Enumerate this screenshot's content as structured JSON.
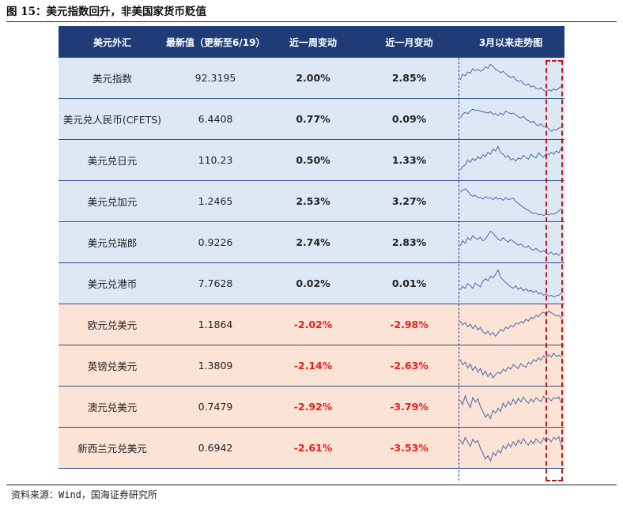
{
  "figure": {
    "title": "图 15：美元指数回升，非美国家货币贬值",
    "source": "资料来源：Wind，国海证券研究所"
  },
  "table": {
    "headers": [
      "美元外汇",
      "最新值（更新至6/19）",
      "近一周变动",
      "近一月变动",
      "3月以来走势图"
    ],
    "rows": [
      {
        "name": "美元指数",
        "latest": "92.3195",
        "week": "2.00%",
        "month": "2.85%",
        "group": "usd",
        "trend": [
          0.45,
          0.62,
          0.58,
          0.7,
          0.66,
          0.8,
          0.74,
          0.78,
          0.72,
          0.76,
          0.86,
          0.82,
          0.94,
          0.88,
          0.78,
          0.74,
          0.68,
          0.72,
          0.64,
          0.58,
          0.52,
          0.56,
          0.46,
          0.4,
          0.42,
          0.34,
          0.28,
          0.32,
          0.22,
          0.26,
          0.18,
          0.16,
          0.2,
          0.12,
          0.08,
          0.14,
          0.1,
          0.16,
          0.12,
          0.18,
          0.26
        ]
      },
      {
        "name": "美元兑人民币(CFETS)",
        "latest": "6.4408",
        "week": "0.77%",
        "month": "0.09%",
        "group": "usd",
        "trend": [
          0.55,
          0.66,
          0.72,
          0.68,
          0.76,
          0.82,
          0.78,
          0.8,
          0.76,
          0.74,
          0.72,
          0.7,
          0.74,
          0.66,
          0.68,
          0.62,
          0.7,
          0.64,
          0.76,
          0.72,
          0.68,
          0.7,
          0.64,
          0.58,
          0.54,
          0.6,
          0.5,
          0.46,
          0.4,
          0.44,
          0.34,
          0.3,
          0.36,
          0.26,
          0.28,
          0.2,
          0.12,
          0.18,
          0.16,
          0.22,
          0.24
        ]
      },
      {
        "name": "美元兑日元",
        "latest": "110.23",
        "week": "0.50%",
        "month": "1.33%",
        "group": "usd",
        "trend": [
          0.2,
          0.3,
          0.36,
          0.52,
          0.44,
          0.56,
          0.5,
          0.62,
          0.56,
          0.68,
          0.62,
          0.76,
          0.7,
          0.86,
          0.8,
          0.94,
          0.74,
          0.7,
          0.6,
          0.66,
          0.52,
          0.56,
          0.48,
          0.58,
          0.54,
          0.66,
          0.6,
          0.54,
          0.7,
          0.62,
          0.58,
          0.74,
          0.66,
          0.6,
          0.72,
          0.68,
          0.76,
          0.7,
          0.8,
          0.74,
          0.9
        ]
      },
      {
        "name": "美元兑加元",
        "latest": "1.2465",
        "week": "2.53%",
        "month": "3.27%",
        "group": "usd",
        "trend": [
          0.8,
          0.86,
          0.9,
          0.84,
          0.72,
          0.66,
          0.7,
          0.62,
          0.64,
          0.58,
          0.66,
          0.6,
          0.62,
          0.56,
          0.64,
          0.58,
          0.6,
          0.54,
          0.62,
          0.56,
          0.58,
          0.6,
          0.5,
          0.44,
          0.38,
          0.32,
          0.26,
          0.22,
          0.16,
          0.12,
          0.14,
          0.08,
          0.1,
          0.06,
          0.1,
          0.08,
          0.12,
          0.1,
          0.14,
          0.2,
          0.28
        ]
      },
      {
        "name": "美元兑瑞郎",
        "latest": "0.9226",
        "week": "2.74%",
        "month": "2.83%",
        "group": "usd",
        "trend": [
          0.4,
          0.56,
          0.48,
          0.66,
          0.58,
          0.72,
          0.64,
          0.6,
          0.68,
          0.56,
          0.62,
          0.74,
          0.86,
          0.8,
          0.7,
          0.62,
          0.56,
          0.66,
          0.58,
          0.52,
          0.6,
          0.54,
          0.48,
          0.42,
          0.46,
          0.38,
          0.34,
          0.4,
          0.3,
          0.26,
          0.32,
          0.24,
          0.2,
          0.26,
          0.18,
          0.14,
          0.2,
          0.12,
          0.16,
          0.1,
          0.18
        ]
      },
      {
        "name": "美元兑港币",
        "latest": "7.7628",
        "week": "0.02%",
        "month": "0.01%",
        "group": "usd",
        "trend": [
          0.3,
          0.42,
          0.36,
          0.5,
          0.44,
          0.36,
          0.52,
          0.46,
          0.4,
          0.58,
          0.66,
          0.6,
          0.74,
          0.68,
          0.8,
          0.94,
          0.7,
          0.62,
          0.54,
          0.48,
          0.4,
          0.36,
          0.44,
          0.32,
          0.38,
          0.28,
          0.34,
          0.26,
          0.3,
          0.22,
          0.28,
          0.18,
          0.22,
          0.14,
          0.18,
          0.1,
          0.14,
          0.08,
          0.12,
          0.14,
          0.2
        ]
      },
      {
        "name": "欧元兑美元",
        "latest": "1.1864",
        "week": "-2.02%",
        "month": "-2.98%",
        "group": "nonusd",
        "trend": [
          0.62,
          0.5,
          0.58,
          0.44,
          0.52,
          0.38,
          0.48,
          0.34,
          0.42,
          0.28,
          0.22,
          0.3,
          0.18,
          0.26,
          0.14,
          0.24,
          0.36,
          0.3,
          0.42,
          0.38,
          0.48,
          0.44,
          0.56,
          0.52,
          0.6,
          0.56,
          0.68,
          0.62,
          0.74,
          0.7,
          0.8,
          0.76,
          0.86,
          0.9,
          0.82,
          0.94,
          0.88,
          0.84,
          0.78,
          0.8,
          0.7
        ]
      },
      {
        "name": "英镑兑美元",
        "latest": "1.3809",
        "week": "-2.14%",
        "month": "-2.63%",
        "group": "nonusd",
        "trend": [
          0.7,
          0.54,
          0.62,
          0.44,
          0.56,
          0.36,
          0.48,
          0.3,
          0.42,
          0.22,
          0.34,
          0.16,
          0.28,
          0.12,
          0.24,
          0.3,
          0.26,
          0.4,
          0.34,
          0.46,
          0.4,
          0.54,
          0.48,
          0.42,
          0.58,
          0.5,
          0.46,
          0.62,
          0.56,
          0.7,
          0.64,
          0.76,
          0.68,
          0.82,
          0.74,
          0.86,
          0.78,
          0.9,
          0.8,
          0.84,
          0.76
        ]
      },
      {
        "name": "澳元兑美元",
        "latest": "0.7479",
        "week": "-2.92%",
        "month": "-3.79%",
        "group": "nonusd",
        "trend": [
          0.72,
          0.58,
          0.86,
          0.64,
          0.48,
          0.8,
          0.66,
          0.76,
          0.52,
          0.36,
          0.18,
          0.28,
          0.14,
          0.4,
          0.3,
          0.46,
          0.36,
          0.62,
          0.5,
          0.68,
          0.56,
          0.74,
          0.6,
          0.78,
          0.66,
          0.82,
          0.7,
          0.62,
          0.76,
          0.66,
          0.8,
          0.72,
          0.68,
          0.84,
          0.74,
          0.78,
          0.7,
          0.8,
          0.76,
          0.82,
          0.62
        ]
      },
      {
        "name": "新西兰元兑美元",
        "latest": "0.6942",
        "week": "-2.61%",
        "month": "-3.53%",
        "group": "nonusd",
        "trend": [
          0.76,
          0.62,
          0.84,
          0.7,
          0.56,
          0.78,
          0.68,
          0.74,
          0.5,
          0.34,
          0.16,
          0.26,
          0.1,
          0.36,
          0.26,
          0.44,
          0.34,
          0.58,
          0.48,
          0.64,
          0.54,
          0.7,
          0.58,
          0.76,
          0.64,
          0.8,
          0.68,
          0.6,
          0.74,
          0.64,
          0.8,
          0.7,
          0.66,
          0.82,
          0.72,
          0.8,
          0.7,
          0.84,
          0.78,
          0.86,
          0.56
        ]
      }
    ]
  },
  "colors": {
    "header_bg": "#1f3c76",
    "usd_row_bg": "#dce9f5",
    "nonusd_row_bg": "#fbe3d6",
    "negative_text": "#e8201c",
    "sparkline": "#4a6aa5",
    "marker_line": "#2a3f8f",
    "highlight_box": "#c0141b"
  }
}
